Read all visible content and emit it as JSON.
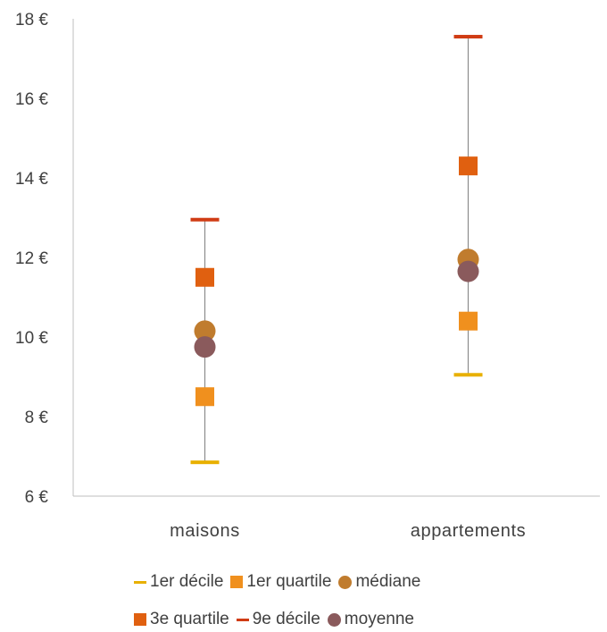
{
  "chart_data": {
    "type": "scatter",
    "categories": [
      "maisons",
      "appartements"
    ],
    "series": [
      {
        "name": "1er décile",
        "values": [
          6.85,
          9.05
        ],
        "color": "#E8B000",
        "marker": "dash"
      },
      {
        "name": "1er quartile",
        "values": [
          8.5,
          10.4
        ],
        "color": "#F0901E",
        "marker": "square"
      },
      {
        "name": "médiane",
        "values": [
          10.15,
          11.95
        ],
        "color": "#C07C2E",
        "marker": "circle"
      },
      {
        "name": "3e quartile",
        "values": [
          11.5,
          14.3
        ],
        "color": "#E06010",
        "marker": "square"
      },
      {
        "name": "9e décile",
        "values": [
          12.95,
          17.55
        ],
        "color": "#D03C14",
        "marker": "dash"
      },
      {
        "name": "moyenne",
        "values": [
          9.75,
          11.65
        ],
        "color": "#8A5A5C",
        "marker": "circle"
      }
    ],
    "range_line": {
      "from_series": "1er décile",
      "to_series": "9e décile",
      "color": "#8C8C8C"
    },
    "ylim": [
      6,
      18
    ],
    "yticks": [
      6,
      8,
      10,
      12,
      14,
      16,
      18
    ],
    "ytick_labels": [
      "6 €",
      "8 €",
      "10 €",
      "12 €",
      "14 €",
      "16 €",
      "18 €"
    ],
    "title": "",
    "xlabel": "",
    "ylabel": "",
    "grid": false,
    "legend_position": "bottom"
  }
}
